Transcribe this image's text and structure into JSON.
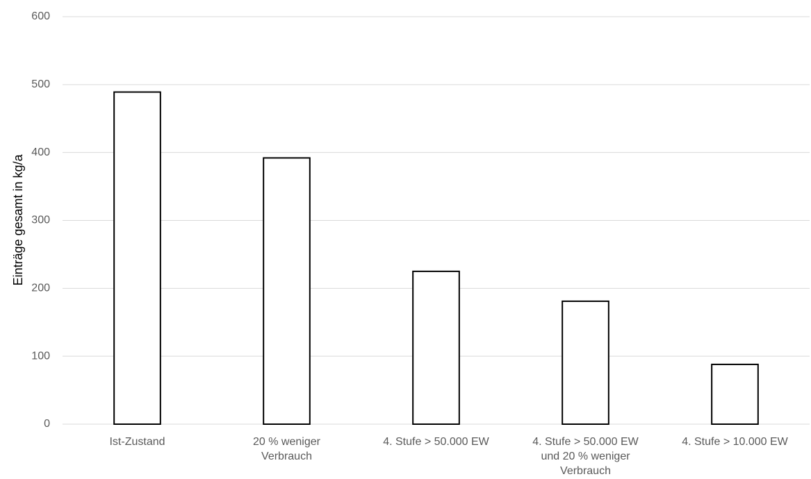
{
  "chart_data": {
    "type": "bar",
    "categories": [
      [
        "Ist-Zustand"
      ],
      [
        "20 % weniger",
        "Verbrauch"
      ],
      [
        "4. Stufe > 50.000 EW"
      ],
      [
        "4. Stufe > 50.000 EW",
        "und 20 % weniger",
        "Verbrauch"
      ],
      [
        "4. Stufe > 10.000 EW"
      ]
    ],
    "values": [
      489,
      392,
      225,
      181,
      88
    ],
    "title": "",
    "xlabel": "",
    "ylabel": "Einträge gesamt in kg/a",
    "ylim": [
      0,
      600
    ],
    "yticks": [
      "0",
      "100",
      "200",
      "300",
      "400",
      "500",
      "600"
    ],
    "grid": true,
    "legend": "none",
    "colors": {
      "bar_fill": "#ffffff",
      "bar_stroke": "#000000",
      "grid": "#d9d9d9",
      "tick_text": "#595959",
      "axis_title": "#000000"
    }
  }
}
